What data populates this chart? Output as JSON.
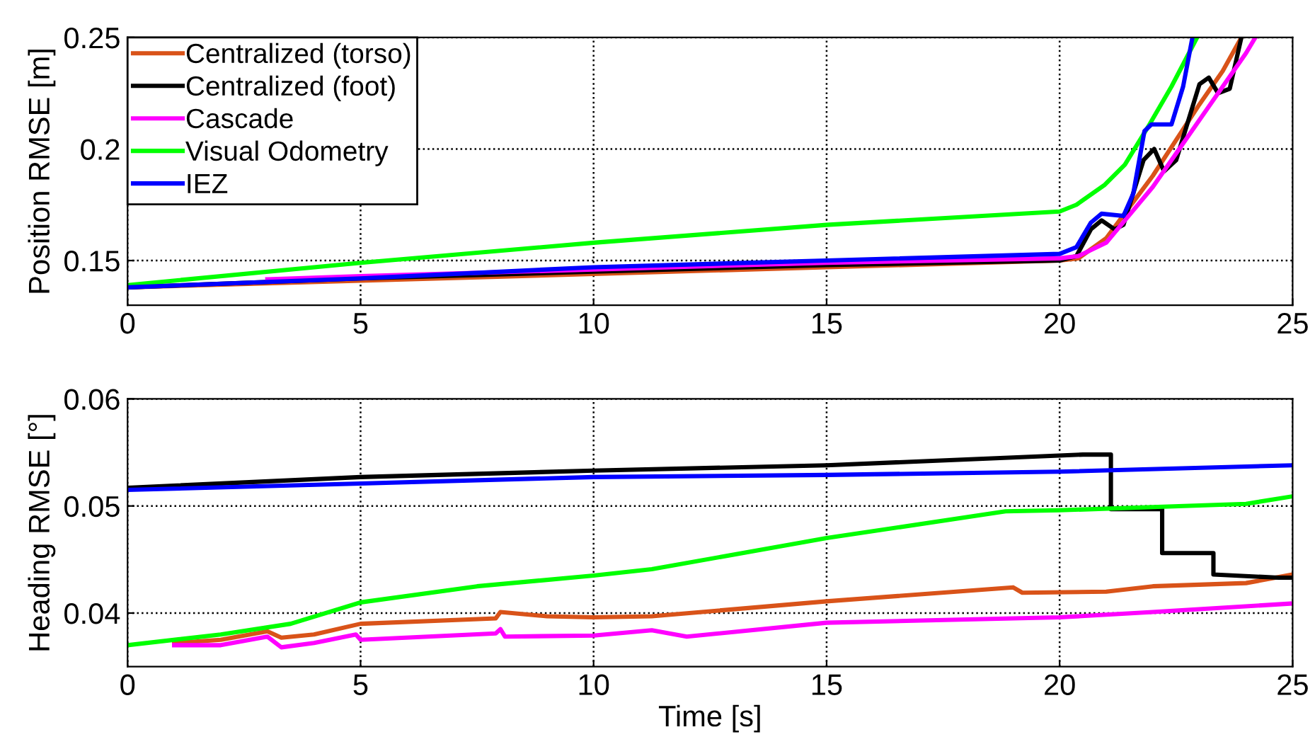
{
  "chart_data": [
    {
      "type": "line",
      "ylabel": "Position RMSE [m]",
      "xlim": [
        0,
        25
      ],
      "ylim": [
        0.13,
        0.25
      ],
      "xticks": [
        0,
        5,
        10,
        15,
        20,
        25
      ],
      "yticks": [
        0.15,
        0.2,
        0.25
      ],
      "grid": true,
      "legend": "top left",
      "line_style": "solid",
      "marker": "none",
      "series": [
        {
          "name": "Centralized (torso)",
          "color": "#d95319",
          "x": [
            0,
            5,
            10,
            15,
            20,
            20.4,
            21,
            22,
            23,
            23.5,
            23.9
          ],
          "values": [
            0.138,
            0.141,
            0.144,
            0.147,
            0.15,
            0.151,
            0.16,
            0.188,
            0.22,
            0.235,
            0.25
          ]
        },
        {
          "name": "Centralized (foot)",
          "color": "#000000",
          "x": [
            0,
            5,
            10,
            15,
            20,
            20.36,
            20.67,
            20.9,
            21.18,
            21.37,
            21.8,
            22.03,
            22.24,
            22.5,
            23.0,
            23.2,
            23.4,
            23.65,
            23.9
          ],
          "values": [
            0.138,
            0.142,
            0.145,
            0.148,
            0.15,
            0.152,
            0.164,
            0.168,
            0.164,
            0.166,
            0.195,
            0.2,
            0.19,
            0.195,
            0.229,
            0.232,
            0.225,
            0.227,
            0.25
          ]
        },
        {
          "name": "Cascade",
          "color": "#ff00ff",
          "x": [
            3,
            5,
            10,
            15,
            20,
            20.4,
            21,
            22,
            23,
            24,
            24.2
          ],
          "values": [
            0.1416,
            0.143,
            0.146,
            0.149,
            0.151,
            0.152,
            0.158,
            0.183,
            0.213,
            0.243,
            0.25
          ]
        },
        {
          "name": "Visual Odometry",
          "color": "#00ff00",
          "x": [
            0,
            5,
            10,
            15,
            20,
            20.36,
            20.97,
            21.4,
            21.9,
            22.4,
            22.95
          ],
          "values": [
            0.139,
            0.149,
            0.158,
            0.166,
            0.172,
            0.175,
            0.184,
            0.193,
            0.21,
            0.228,
            0.25
          ]
        },
        {
          "name": "IEZ",
          "color": "#0000ff",
          "x": [
            0,
            5,
            10,
            15,
            20,
            20.36,
            20.67,
            20.9,
            21.37,
            21.58,
            21.82,
            21.97,
            22.4,
            22.65,
            22.85
          ],
          "values": [
            0.138,
            0.142,
            0.147,
            0.15,
            0.153,
            0.156,
            0.167,
            0.171,
            0.17,
            0.18,
            0.208,
            0.211,
            0.211,
            0.228,
            0.25
          ]
        }
      ]
    },
    {
      "type": "line",
      "xlabel": "Time [s]",
      "ylabel": "Heading RMSE [°]",
      "xlim": [
        0,
        25
      ],
      "ylim": [
        0.035,
        0.06
      ],
      "xticks": [
        0,
        5,
        10,
        15,
        20,
        25
      ],
      "yticks": [
        0.04,
        0.05,
        0.06
      ],
      "grid": true,
      "legend": false,
      "line_style": "solid",
      "marker": "none",
      "series": [
        {
          "color": "#d95319",
          "x": [
            1,
            2,
            3,
            3.3,
            4,
            5,
            7.9,
            8,
            9,
            10,
            11.25,
            15,
            19,
            19.2,
            21,
            22,
            24,
            25
          ],
          "values": [
            0.0372,
            0.0375,
            0.0383,
            0.0377,
            0.038,
            0.039,
            0.0395,
            0.0401,
            0.0397,
            0.0396,
            0.0397,
            0.0411,
            0.0424,
            0.0419,
            0.042,
            0.0425,
            0.0428,
            0.0436
          ]
        },
        {
          "color": "#000000",
          "x": [
            0,
            5,
            10,
            15,
            20.5,
            21.1,
            21.1,
            22.2,
            22.2,
            23.3,
            23.3,
            24.7,
            25
          ],
          "values": [
            0.0517,
            0.0527,
            0.0533,
            0.0538,
            0.0548,
            0.0548,
            0.0497,
            0.0497,
            0.0456,
            0.0456,
            0.0436,
            0.0433,
            0.0433
          ]
        },
        {
          "color": "#ff00ff",
          "x": [
            1,
            2,
            3,
            3.3,
            4,
            4.9,
            5,
            7.9,
            8,
            8.1,
            10,
            11.25,
            12,
            15,
            19,
            20,
            22,
            25
          ],
          "values": [
            0.037,
            0.037,
            0.0378,
            0.0368,
            0.0372,
            0.038,
            0.0375,
            0.0381,
            0.0385,
            0.0378,
            0.0379,
            0.0384,
            0.0378,
            0.0391,
            0.0395,
            0.0396,
            0.0401,
            0.0409
          ]
        },
        {
          "color": "#00ff00",
          "x": [
            0,
            2,
            3.5,
            5,
            7.5,
            10,
            11.25,
            15,
            18.84,
            20,
            22,
            24,
            25
          ],
          "values": [
            0.037,
            0.038,
            0.039,
            0.041,
            0.0425,
            0.0435,
            0.0441,
            0.047,
            0.0495,
            0.0496,
            0.0499,
            0.0502,
            0.0509
          ]
        },
        {
          "color": "#0000ff",
          "x": [
            0,
            5,
            10,
            15,
            20,
            25
          ],
          "values": [
            0.0515,
            0.0521,
            0.0527,
            0.0529,
            0.0532,
            0.0538
          ]
        }
      ]
    }
  ]
}
